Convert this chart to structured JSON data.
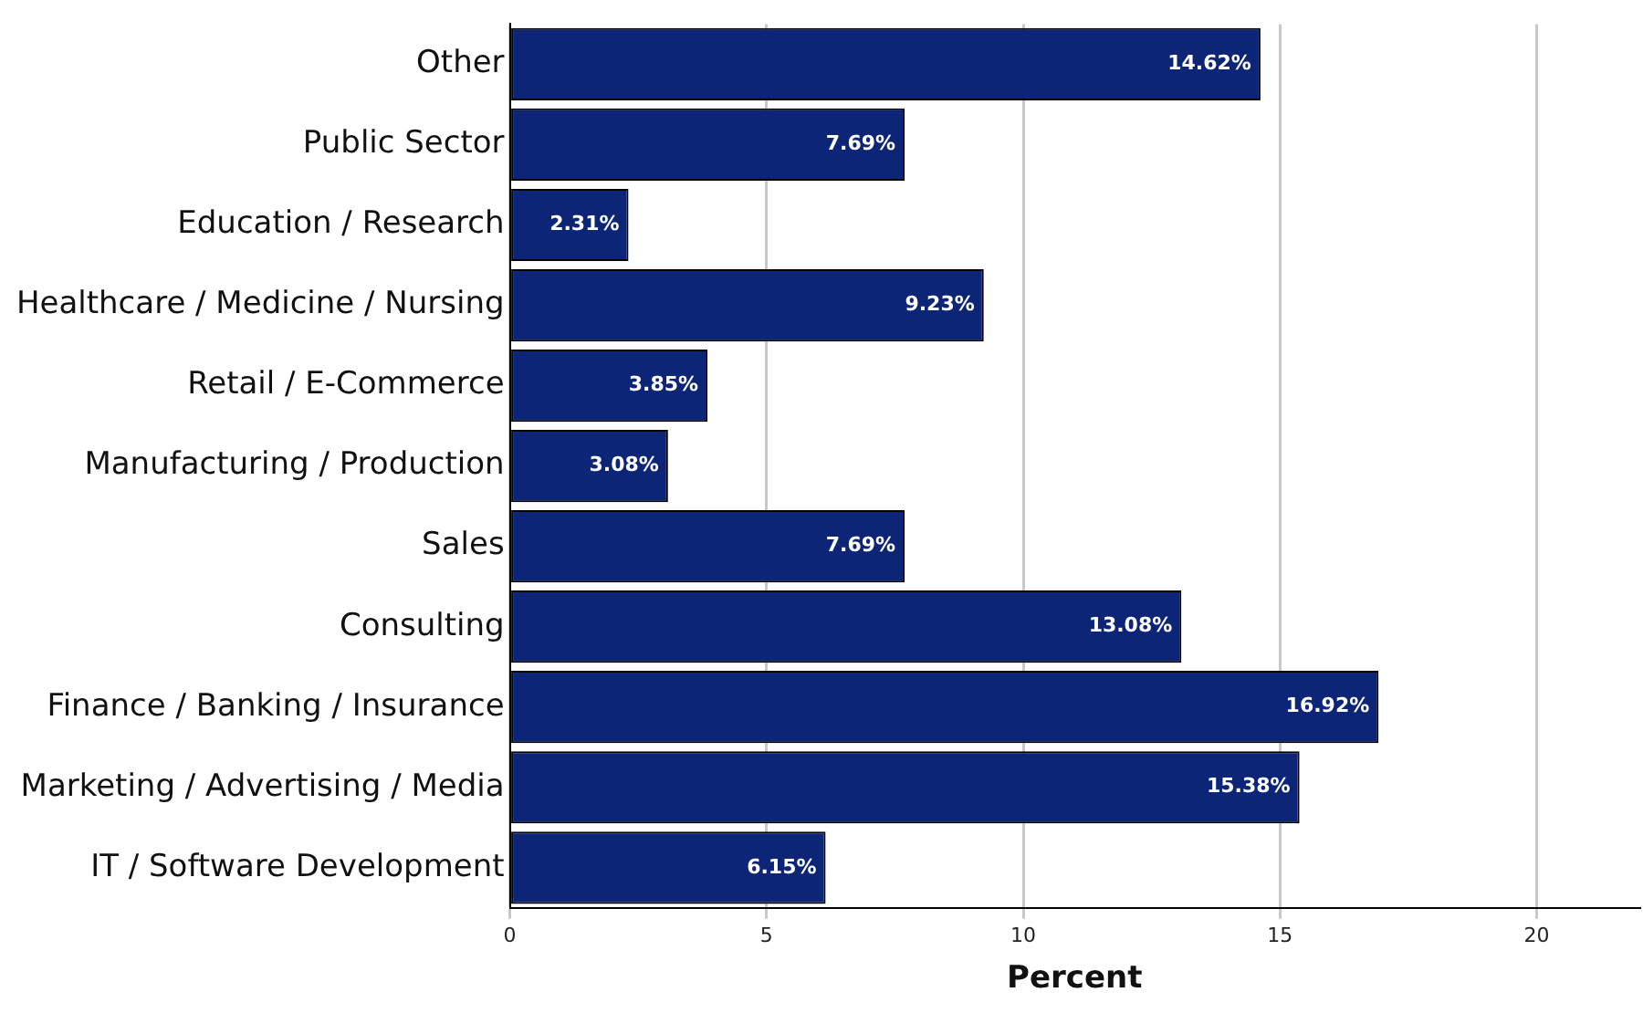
{
  "chart_data": {
    "type": "bar",
    "orientation": "horizontal",
    "xlabel": "Percent",
    "categories": [
      "Other",
      "Public Sector",
      "Education / Research",
      "Healthcare / Medicine / Nursing",
      "Retail / E-Commerce",
      "Manufacturing / Production",
      "Sales",
      "Consulting",
      "Finance / Banking / Insurance",
      "Marketing / Advertising / Media",
      "IT / Software Development"
    ],
    "values": [
      14.62,
      7.69,
      2.31,
      9.23,
      3.85,
      3.08,
      7.69,
      13.08,
      16.92,
      15.38,
      6.15
    ],
    "value_labels": [
      "14.62%",
      "7.69%",
      "2.31%",
      "9.23%",
      "3.85%",
      "3.08%",
      "7.69%",
      "13.08%",
      "16.92%",
      "15.38%",
      "6.15%"
    ],
    "color": "#0c2577",
    "xlim": [
      0,
      22
    ],
    "xticks": [
      0,
      5,
      10,
      15,
      20
    ],
    "grid": "x",
    "legend": false
  }
}
